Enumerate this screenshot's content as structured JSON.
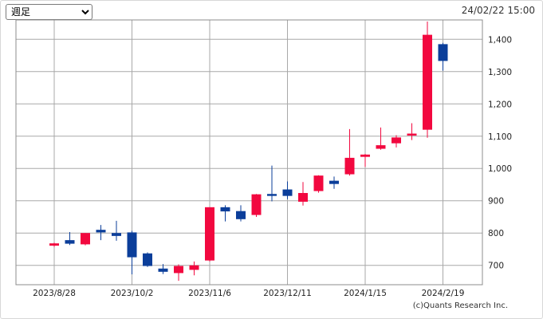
{
  "controls": {
    "period_selected": "週足",
    "period_options": [
      "週足"
    ]
  },
  "timestamp": "24/02/22 15:00",
  "copyright": "(c)Quants Research Inc.",
  "colors": {
    "up": "#f2083f",
    "down": "#0b3e9a",
    "grid": "#a8a8a8"
  },
  "chart_data": {
    "type": "candlestick",
    "title": "",
    "xlabel": "",
    "ylabel": "",
    "ylim": [
      640,
      1460
    ],
    "yticks": [
      700,
      800,
      900,
      1000,
      1100,
      1200,
      1300,
      1400
    ],
    "ytick_labels": [
      "700",
      "800",
      "900",
      "1,000",
      "1,100",
      "1,200",
      "1,300",
      "1,400"
    ],
    "xtick_labels": [
      "2023/8/28",
      "2023/10/2",
      "2023/11/6",
      "2023/12/11",
      "2024/1/15",
      "2024/2/19"
    ],
    "xtick_index": [
      0,
      5,
      10,
      15,
      20,
      25
    ],
    "grid": true,
    "candles": [
      {
        "o": 761,
        "h": 770,
        "l": 757,
        "c": 768
      },
      {
        "o": 778,
        "h": 803,
        "l": 763,
        "c": 767
      },
      {
        "o": 765,
        "h": 800,
        "l": 762,
        "c": 800
      },
      {
        "o": 810,
        "h": 825,
        "l": 778,
        "c": 802
      },
      {
        "o": 800,
        "h": 838,
        "l": 776,
        "c": 791
      },
      {
        "o": 802,
        "h": 807,
        "l": 672,
        "c": 725
      },
      {
        "o": 737,
        "h": 740,
        "l": 695,
        "c": 698
      },
      {
        "o": 690,
        "h": 704,
        "l": 673,
        "c": 680
      },
      {
        "o": 676,
        "h": 703,
        "l": 652,
        "c": 698
      },
      {
        "o": 686,
        "h": 712,
        "l": 669,
        "c": 700
      },
      {
        "o": 715,
        "h": 880,
        "l": 712,
        "c": 880
      },
      {
        "o": 880,
        "h": 886,
        "l": 836,
        "c": 867
      },
      {
        "o": 868,
        "h": 886,
        "l": 836,
        "c": 843
      },
      {
        "o": 856,
        "h": 921,
        "l": 850,
        "c": 920
      },
      {
        "o": 921,
        "h": 1009,
        "l": 898,
        "c": 915
      },
      {
        "o": 935,
        "h": 960,
        "l": 905,
        "c": 915
      },
      {
        "o": 897,
        "h": 958,
        "l": 885,
        "c": 924
      },
      {
        "o": 930,
        "h": 979,
        "l": 925,
        "c": 978
      },
      {
        "o": 962,
        "h": 975,
        "l": 937,
        "c": 952
      },
      {
        "o": 982,
        "h": 1122,
        "l": 978,
        "c": 1033
      },
      {
        "o": 1036,
        "h": 1045,
        "l": 1005,
        "c": 1043
      },
      {
        "o": 1061,
        "h": 1127,
        "l": 1058,
        "c": 1072
      },
      {
        "o": 1078,
        "h": 1103,
        "l": 1065,
        "c": 1096
      },
      {
        "o": 1102,
        "h": 1140,
        "l": 1088,
        "c": 1108
      },
      {
        "o": 1120,
        "h": 1455,
        "l": 1095,
        "c": 1414
      },
      {
        "o": 1385,
        "h": 1389,
        "l": 1303,
        "c": 1333
      }
    ]
  }
}
